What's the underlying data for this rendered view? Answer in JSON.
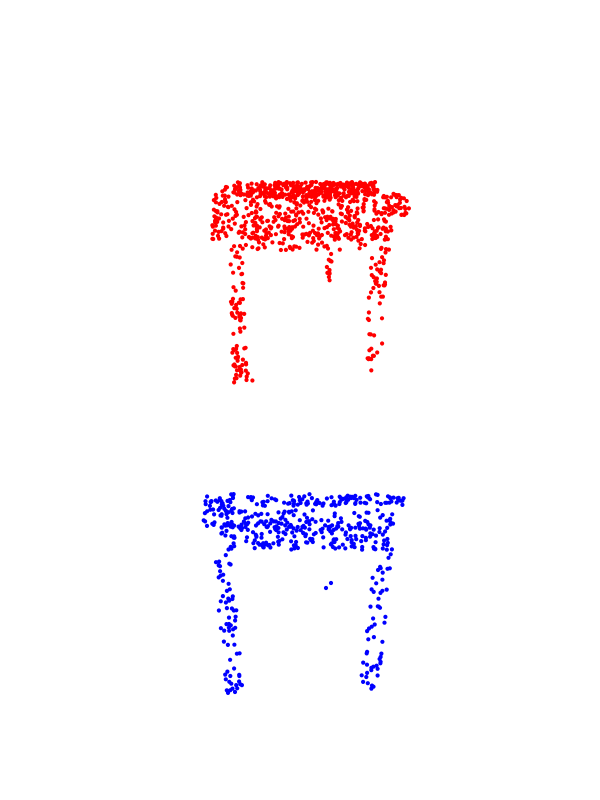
{
  "scene": {
    "background": "#ffffff",
    "clouds": [
      {
        "name": "red-point-cloud",
        "color": "#ff0000",
        "shape": "table-like object: dense tabletop with four sparse legs",
        "points": 1100
      },
      {
        "name": "blue-point-cloud",
        "color": "#0000ff",
        "shape": "table-like object: tabletop rim and apron with four sparse legs",
        "points": 620
      }
    ]
  }
}
